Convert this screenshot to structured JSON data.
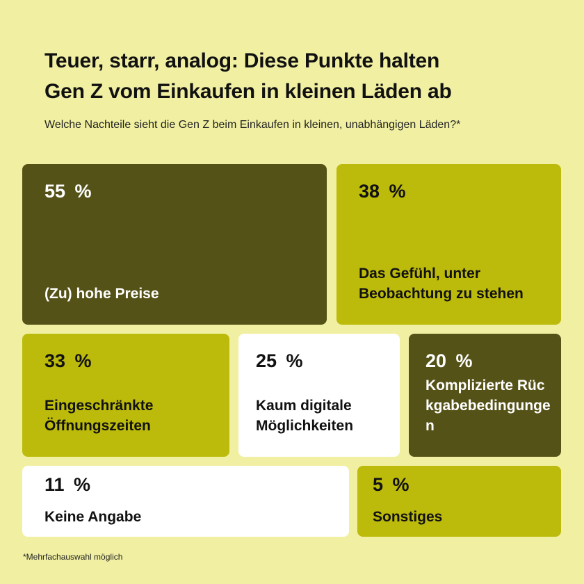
{
  "title_lines": [
    "Teuer, starr, analog: Diese Punkte halten",
    "Gen Z vom Einkaufen in kleinen Läden ab"
  ],
  "subtitle": "Welche Nachteile sieht die Gen Z beim Einkaufen in kleinen, unabhängigen Läden?*",
  "footnote": "*Mehrfachauswahl möglich",
  "colors": {
    "background": "#f1f0a2",
    "dark": "#555218",
    "lime": "#bcba0a",
    "white": "#ffffff"
  },
  "chart_data": {
    "type": "treemap",
    "unit": "%",
    "items": [
      {
        "label": "(Zu) hohe Preise",
        "value": 55,
        "display": "55 %",
        "color": "#555218",
        "text_color": "#ffffff"
      },
      {
        "label": "Das Gefühl, unter Beobachtung zu stehen",
        "value": 38,
        "display": "38 %",
        "color": "#bcba0a",
        "text_color": "#111111"
      },
      {
        "label": "Eingeschränkte Öffnungszeiten",
        "value": 33,
        "display": "33 %",
        "color": "#bcba0a",
        "text_color": "#111111"
      },
      {
        "label": "Kaum digitale Möglichkeiten",
        "value": 25,
        "display": "25 %",
        "color": "#ffffff",
        "text_color": "#111111"
      },
      {
        "label": "Komplizierte Rückgabebedingungen",
        "value": 20,
        "display": "20 %",
        "color": "#555218",
        "text_color": "#ffffff"
      },
      {
        "label": "Keine Angabe",
        "value": 11,
        "display": "11 %",
        "color": "#ffffff",
        "text_color": "#111111"
      },
      {
        "label": "Sonstiges",
        "value": 5,
        "display": "5 %",
        "color": "#bcba0a",
        "text_color": "#111111"
      }
    ]
  }
}
